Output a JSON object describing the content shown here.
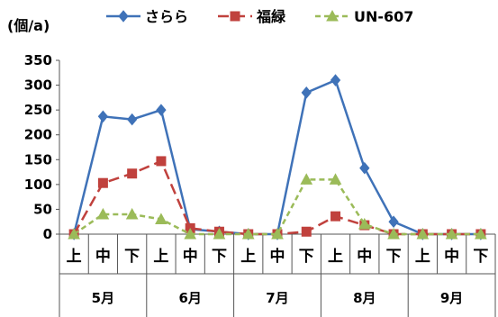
{
  "chart_data": {
    "type": "line",
    "y_unit_label": "(個/a)",
    "ylim": [
      0,
      350
    ],
    "y_ticks": [
      "0",
      "50",
      "100",
      "150",
      "200",
      "250",
      "300",
      "350"
    ],
    "categories": [
      "上",
      "中",
      "下",
      "上",
      "中",
      "下",
      "上",
      "中",
      "下",
      "上",
      "中",
      "下",
      "上",
      "中",
      "下"
    ],
    "months": [
      "5月",
      "6月",
      "7月",
      "8月",
      "9月"
    ],
    "legend_position": "top",
    "grid": false,
    "series": [
      {
        "name": "さらら",
        "color": "#3f72b8",
        "marker": "diamond",
        "dash": "solid",
        "values": [
          0,
          237,
          231,
          250,
          10,
          5,
          0,
          0,
          285,
          310,
          133,
          25,
          0,
          0,
          0
        ]
      },
      {
        "name": "福緑",
        "color": "#c0413d",
        "marker": "square",
        "dash": "long-dash",
        "values": [
          0,
          103,
          122,
          147,
          12,
          5,
          0,
          0,
          5,
          36,
          18,
          0,
          0,
          0,
          0
        ]
      },
      {
        "name": "UN-607",
        "color": "#9bbb59",
        "marker": "triangle",
        "dash": "short-dash",
        "values": [
          0,
          40,
          40,
          30,
          0,
          0,
          0,
          0,
          110,
          110,
          20,
          0,
          0,
          0,
          0
        ]
      }
    ]
  }
}
